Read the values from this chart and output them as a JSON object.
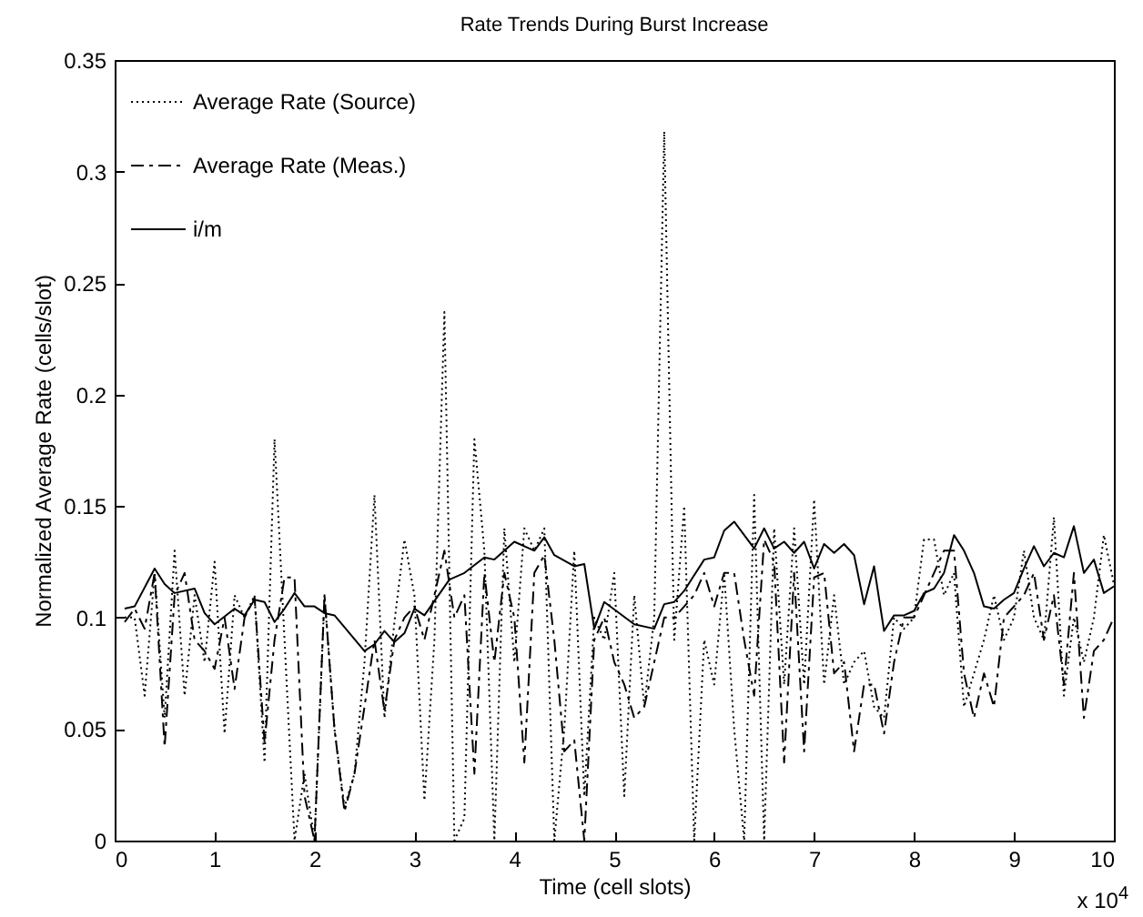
{
  "chart_data": {
    "type": "line",
    "title": "Rate Trends During Burst Increase",
    "xlabel": "Time (cell slots)",
    "ylabel": "Normalized Average Rate (cells/slot)",
    "annotations": [
      "x 10$^{4}$"
    ],
    "x": [
      0.1,
      0.2,
      0.3,
      0.4,
      0.5,
      0.6,
      0.7,
      0.8,
      0.9,
      1.0,
      1.1,
      1.2,
      1.3,
      1.4,
      1.5,
      1.6,
      1.7,
      1.8,
      1.9,
      2.0,
      2.1,
      2.2,
      2.3,
      2.4,
      2.5,
      2.6,
      2.7,
      2.8,
      2.9,
      3.0,
      3.1,
      3.2,
      3.3,
      3.4,
      3.5,
      3.6,
      3.7,
      3.8,
      3.9,
      4.0,
      4.1,
      4.2,
      4.3,
      4.4,
      4.5,
      4.6,
      4.7,
      4.8,
      4.9,
      5.0,
      5.1,
      5.2,
      5.3,
      5.4,
      5.5,
      5.6,
      5.7,
      5.8,
      5.9,
      6.0,
      6.1,
      6.2,
      6.3,
      6.4,
      6.5,
      6.6,
      6.7,
      6.8,
      6.9,
      7.0,
      7.1,
      7.2,
      7.3,
      7.4,
      7.5,
      7.6,
      7.7,
      7.8,
      7.9,
      8.0,
      8.1,
      8.2,
      8.3,
      8.4,
      8.5,
      8.6,
      8.7,
      8.8,
      8.9,
      9.0,
      9.1,
      9.2,
      9.3,
      9.4,
      9.5,
      9.6,
      9.7,
      9.8,
      9.9,
      10.0
    ],
    "series": [
      {
        "name": "Average Rate (Source)",
        "color": "#000000",
        "line_style": "dotted",
        "values": [
          0.1,
          0.1,
          0.065,
          0.12,
          0.055,
          0.13,
          0.065,
          0.11,
          0.08,
          0.125,
          0.048,
          0.11,
          0.1,
          0.11,
          0.035,
          0.18,
          0.09,
          0,
          0.03,
          0,
          0.11,
          0.05,
          0.015,
          0.03,
          0.08,
          0.155,
          0.055,
          0.098,
          0.135,
          0.11,
          0.018,
          0.09,
          0.237,
          0,
          0.01,
          0.18,
          0.13,
          0,
          0.14,
          0.08,
          0.14,
          0.13,
          0.14,
          0,
          0.05,
          0.13,
          0.02,
          0.1,
          0.09,
          0.12,
          0.02,
          0.11,
          0.06,
          0.1,
          0.318,
          0.09,
          0.15,
          0,
          0.09,
          0.07,
          0.12,
          0.05,
          0,
          0.155,
          0,
          0.14,
          0.07,
          0.14,
          0.07,
          0.153,
          0.07,
          0.11,
          0.07,
          0.08,
          0.085,
          0.06,
          0.055,
          0.1,
          0.095,
          0.1,
          0.135,
          0.135,
          0.11,
          0.12,
          0.06,
          0.075,
          0.09,
          0.11,
          0.09,
          0.1,
          0.13,
          0.1,
          0.09,
          0.145,
          0.065,
          0.1,
          0.08,
          0.1,
          0.137,
          0.115
        ]
      },
      {
        "name": "Average Rate (Meas.)",
        "color": "#000000",
        "line_style": "dashed",
        "values": [
          0.098,
          0.104,
          0.095,
          0.12,
          0.042,
          0.11,
          0.12,
          0.09,
          0.085,
          0.077,
          0.1,
          0.068,
          0.1,
          0.109,
          0.044,
          0.09,
          0.118,
          0.118,
          0.02,
          0,
          0.11,
          0.05,
          0.013,
          0.03,
          0.06,
          0.09,
          0.058,
          0.09,
          0.1,
          0.105,
          0.09,
          0.11,
          0.13,
          0.1,
          0.11,
          0.03,
          0.12,
          0.08,
          0.12,
          0.1,
          0.035,
          0.12,
          0.128,
          0.09,
          0.04,
          0.045,
          0,
          0.09,
          0.1,
          0.08,
          0.07,
          0.055,
          0.06,
          0.08,
          0.1,
          0.1,
          0.105,
          0.11,
          0.12,
          0.105,
          0.12,
          0.12,
          0.09,
          0.065,
          0.135,
          0.125,
          0.035,
          0.12,
          0.04,
          0.118,
          0.12,
          0.075,
          0.08,
          0.04,
          0.07,
          0.07,
          0.048,
          0.08,
          0.1,
          0.1,
          0.11,
          0.12,
          0.13,
          0.13,
          0.075,
          0.055,
          0.075,
          0.06,
          0.1,
          0.105,
          0.11,
          0.12,
          0.09,
          0.11,
          0.07,
          0.12,
          0.055,
          0.085,
          0.09,
          0.1
        ]
      },
      {
        "name": "i/m",
        "color": "#000000",
        "line_style": "solid",
        "x": [
          0.1,
          0.2,
          0.4,
          0.5,
          0.6,
          0.8,
          0.9,
          1.0,
          1.2,
          1.3,
          1.4,
          1.5,
          1.6,
          1.7,
          1.8,
          1.9,
          2.0,
          2.1,
          2.2,
          2.5,
          2.6,
          2.7,
          2.8,
          2.9,
          3.0,
          3.1,
          3.35,
          3.5,
          3.7,
          3.8,
          4.0,
          4.2,
          4.3,
          4.4,
          4.6,
          4.7,
          4.8,
          4.9,
          5.2,
          5.4,
          5.5,
          5.6,
          5.7,
          5.9,
          6.0,
          6.1,
          6.2,
          6.4,
          6.5,
          6.6,
          6.7,
          6.8,
          6.9,
          7.0,
          7.1,
          7.2,
          7.3,
          7.4,
          7.5,
          7.6,
          7.7,
          7.8,
          7.9,
          8.0,
          8.1,
          8.2,
          8.3,
          8.4,
          8.5,
          8.6,
          8.7,
          8.8,
          8.9,
          9.0,
          9.1,
          9.2,
          9.3,
          9.4,
          9.5,
          9.6,
          9.7,
          9.8,
          9.9,
          10.0
        ],
        "values": [
          0.104,
          0.105,
          0.122,
          0.115,
          0.111,
          0.113,
          0.102,
          0.097,
          0.104,
          0.101,
          0.108,
          0.107,
          0.098,
          0.104,
          0.111,
          0.105,
          0.105,
          0.102,
          0.101,
          0.085,
          0.088,
          0.094,
          0.089,
          0.093,
          0.104,
          0.101,
          0.117,
          0.12,
          0.127,
          0.126,
          0.134,
          0.13,
          0.136,
          0.128,
          0.123,
          0.124,
          0.095,
          0.107,
          0.097,
          0.095,
          0.106,
          0.107,
          0.112,
          0.126,
          0.127,
          0.139,
          0.143,
          0.131,
          0.14,
          0.131,
          0.134,
          0.129,
          0.134,
          0.122,
          0.133,
          0.129,
          0.133,
          0.128,
          0.106,
          0.123,
          0.094,
          0.101,
          0.101,
          0.103,
          0.111,
          0.113,
          0.12,
          0.137,
          0.13,
          0.12,
          0.105,
          0.104,
          0.108,
          0.111,
          0.122,
          0.132,
          0.123,
          0.129,
          0.127,
          0.141,
          0.12,
          0.126,
          0.111,
          0.114
        ]
      }
    ],
    "xlim": [
      0,
      10
    ],
    "xticks": [
      0,
      1,
      2,
      3,
      4,
      5,
      6,
      7,
      8,
      9,
      10
    ],
    "ylim": [
      0,
      0.35
    ],
    "yticks": [
      0,
      0.05,
      0.1,
      0.15,
      0.2,
      0.25,
      0.3,
      0.35
    ],
    "legend": "top left"
  }
}
